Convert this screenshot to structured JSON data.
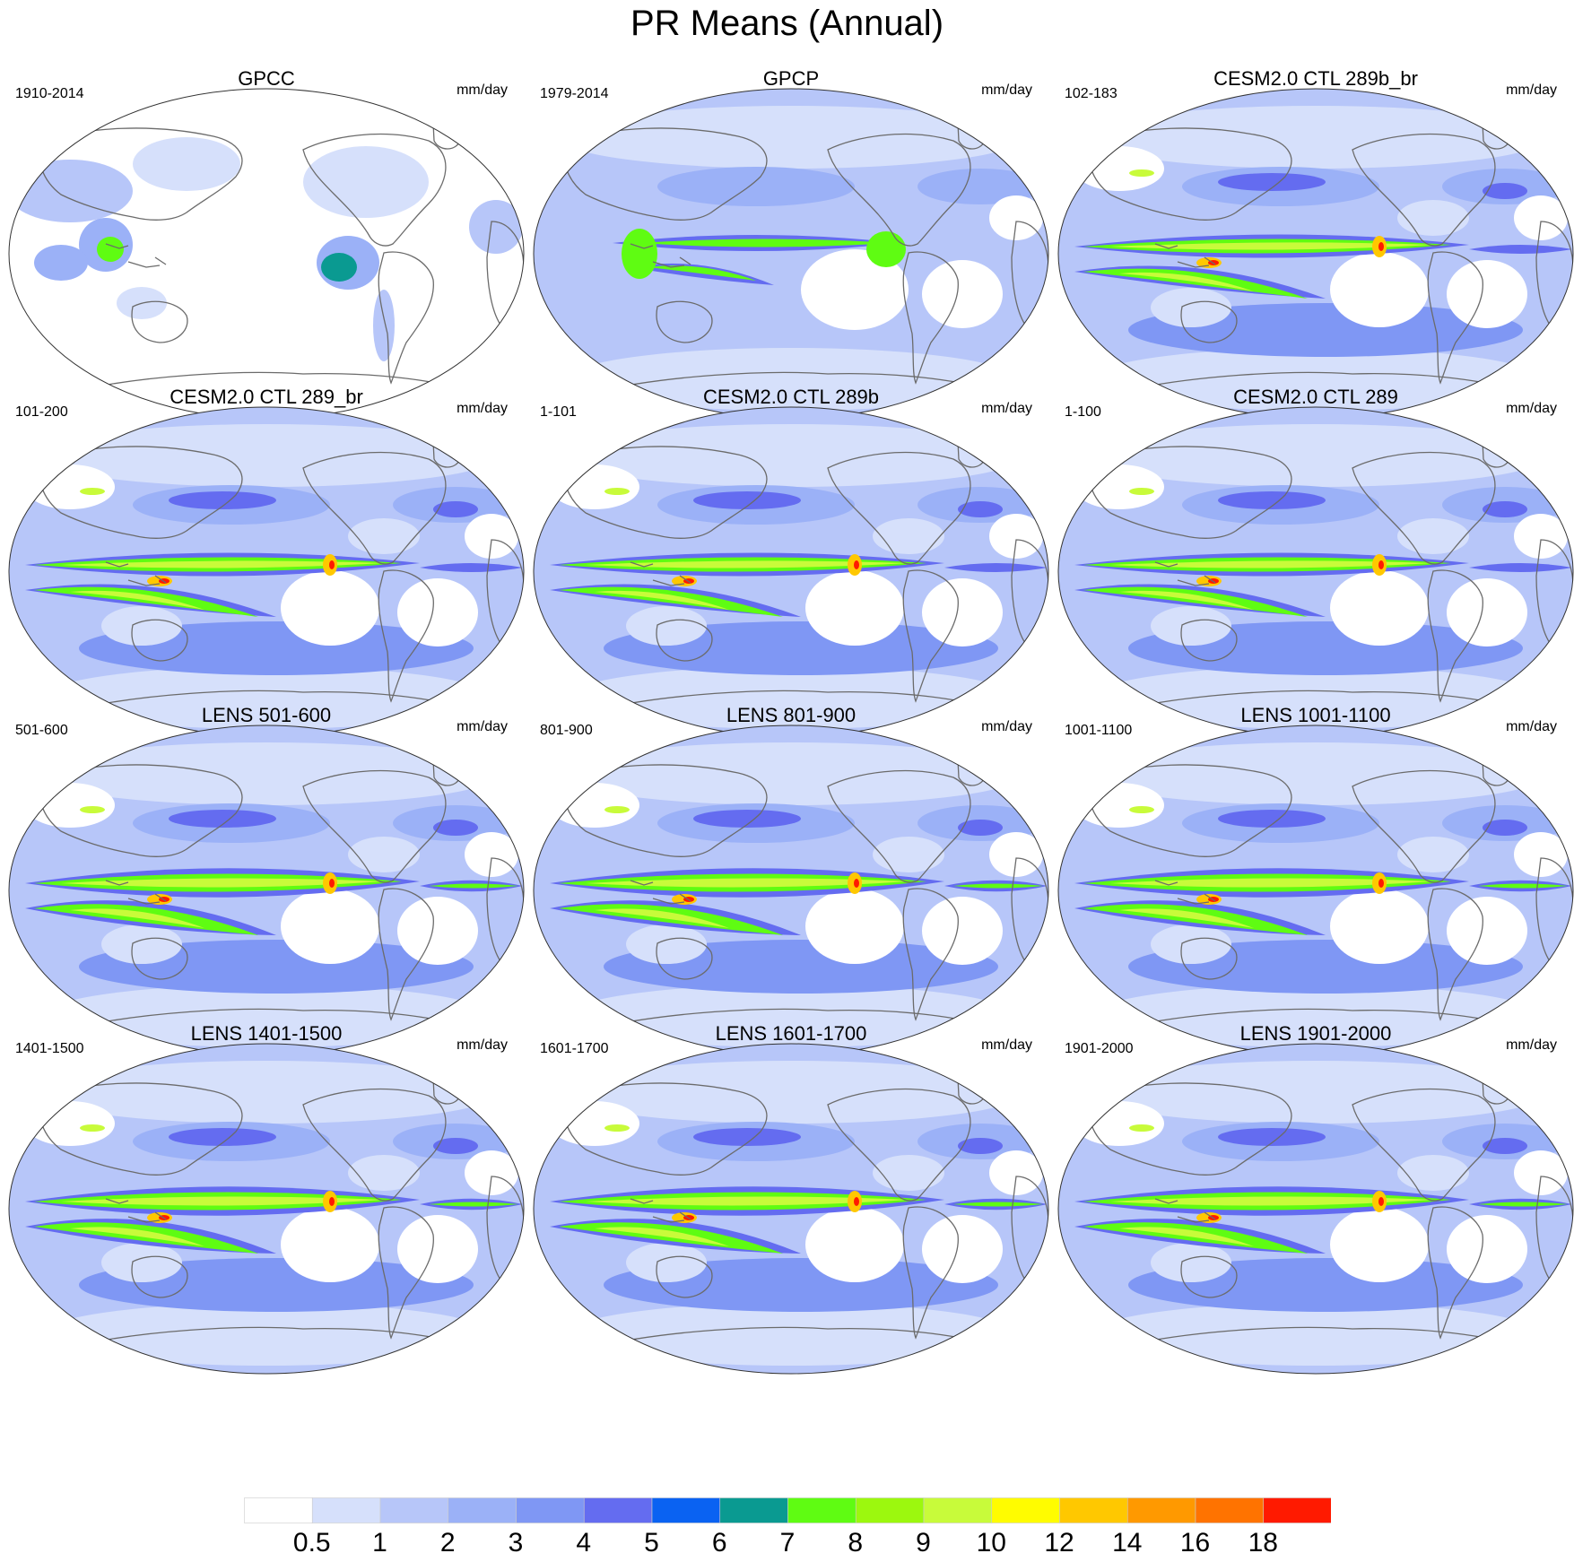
{
  "title": "PR Means (Annual)",
  "panels": [
    {
      "title": "GPCC",
      "years": "1910-2014",
      "units": "mm/day",
      "style": "obs_land"
    },
    {
      "title": "GPCP",
      "years": "1979-2014",
      "units": "mm/day",
      "style": "obs"
    },
    {
      "title": "CESM2.0 CTL 289b_br",
      "years": "102-183",
      "units": "mm/day",
      "style": "model"
    },
    {
      "title": "CESM2.0 CTL 289_br",
      "years": "101-200",
      "units": "mm/day",
      "style": "model"
    },
    {
      "title": "CESM2.0 CTL 289b",
      "years": "1-101",
      "units": "mm/day",
      "style": "model"
    },
    {
      "title": "CESM2.0 CTL 289",
      "years": "1-100",
      "units": "mm/day",
      "style": "model"
    },
    {
      "title": "LENS 501-600",
      "years": "501-600",
      "units": "mm/day",
      "style": "lens"
    },
    {
      "title": "LENS 801-900",
      "years": "801-900",
      "units": "mm/day",
      "style": "lens"
    },
    {
      "title": "LENS 1001-1100",
      "years": "1001-1100",
      "units": "mm/day",
      "style": "lens"
    },
    {
      "title": "LENS 1401-1500",
      "years": "1401-1500",
      "units": "mm/day",
      "style": "lens"
    },
    {
      "title": "LENS 1601-1700",
      "years": "1601-1700",
      "units": "mm/day",
      "style": "lens"
    },
    {
      "title": "LENS 1901-2000",
      "years": "1901-2000",
      "units": "mm/day",
      "style": "lens"
    }
  ],
  "colorbar": {
    "labels": [
      "0.5",
      "1",
      "2",
      "3",
      "4",
      "5",
      "6",
      "7",
      "8",
      "9",
      "10",
      "12",
      "14",
      "16",
      "18"
    ],
    "colors": [
      "#ffffff",
      "#d6e0fb",
      "#b7c6f9",
      "#9bb1f7",
      "#7f97f4",
      "#646cf0",
      "#0a62f2",
      "#0a9a91",
      "#5ffc12",
      "#9cf80e",
      "#c8fb3a",
      "#fffc00",
      "#ffc800",
      "#ff9900",
      "#ff7300",
      "#ff1a00"
    ]
  }
}
